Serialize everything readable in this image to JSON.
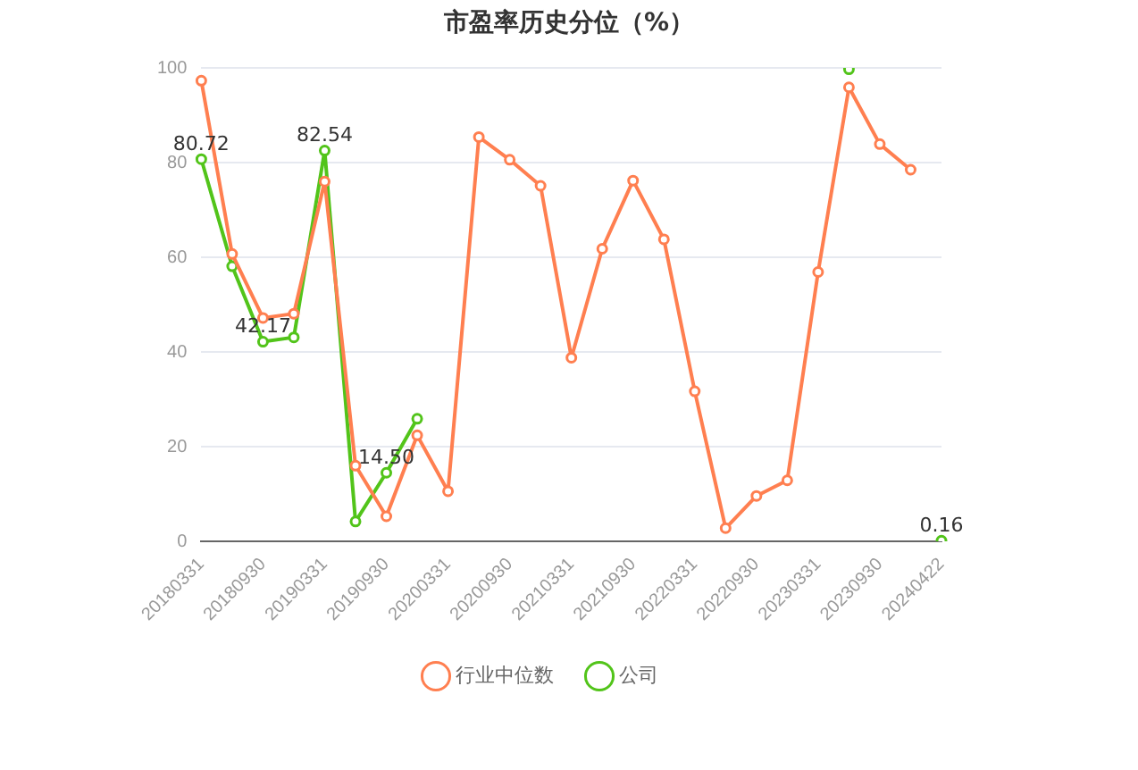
{
  "chart_data": {
    "type": "line",
    "title": "市盈率历史分位（%）",
    "categories": [
      "20180331",
      null,
      "20180930",
      null,
      "20190331",
      null,
      "20190930",
      null,
      "20200331",
      null,
      "20200930",
      null,
      "20210331",
      null,
      "20210930",
      null,
      "20220331",
      null,
      "20220930",
      null,
      "20230331",
      null,
      "20230930",
      null,
      "20240422"
    ],
    "series": [
      {
        "name": "公司",
        "color": "#52c41a",
        "values": [
          80.72,
          58.1,
          42.17,
          43.1,
          82.54,
          4.2,
          14.5,
          25.9,
          null,
          null,
          null,
          null,
          null,
          null,
          null,
          null,
          null,
          null,
          null,
          null,
          null,
          99.7,
          null,
          null,
          0.16
        ],
        "value_labels": [
          "80.72",
          null,
          "42.17",
          null,
          "82.54",
          null,
          "14.50",
          null,
          null,
          null,
          null,
          null,
          null,
          null,
          null,
          null,
          null,
          null,
          null,
          null,
          null,
          null,
          null,
          null,
          "0.16"
        ]
      },
      {
        "name": "行业中位数",
        "color": "#ff7f50",
        "values": [
          97.3,
          60.7,
          47.2,
          48.1,
          76.0,
          16.0,
          5.3,
          22.4,
          10.6,
          85.4,
          80.6,
          75.1,
          38.8,
          61.8,
          76.2,
          63.8,
          31.7,
          2.8,
          9.6,
          12.9,
          56.9,
          95.9,
          83.9,
          78.5,
          null
        ]
      }
    ],
    "ylim": [
      0,
      100
    ],
    "yticks": [
      0,
      20,
      40,
      60,
      80,
      100
    ],
    "grid": "y",
    "legend": "bottom",
    "marker": "circle"
  }
}
